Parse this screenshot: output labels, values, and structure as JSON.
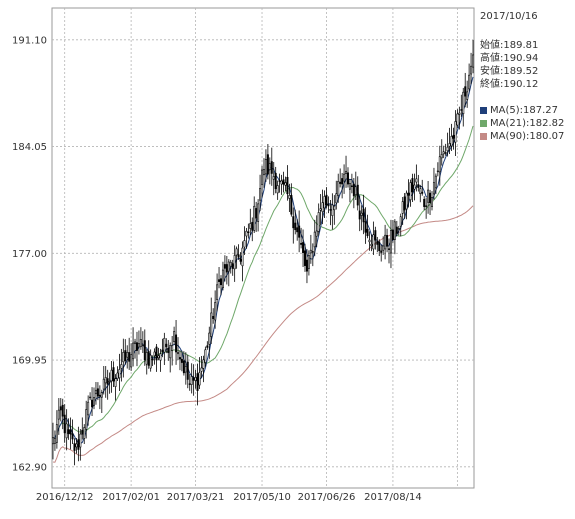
{
  "chart_data": {
    "type": "candlestick",
    "yticks": [
      "191.10",
      "184.05",
      "177.00",
      "169.95",
      "162.90"
    ],
    "ytick_values": [
      191.1,
      184.05,
      177.0,
      169.95,
      162.9
    ],
    "ylim": [
      161.5,
      193.2
    ],
    "xtick_labels": [
      "2016/12/12",
      "2017/02/01",
      "2017/03/21",
      "2017/05/10",
      "2017/06/26",
      "2017/08/14"
    ],
    "xtick_positions": [
      6,
      40,
      73,
      107,
      140,
      174
    ],
    "n_days": 216,
    "grid": true,
    "close_anchors": [
      [
        0,
        164.6
      ],
      [
        4,
        166.4
      ],
      [
        8,
        164.8
      ],
      [
        12,
        164.0
      ],
      [
        16,
        165.9
      ],
      [
        20,
        167.4
      ],
      [
        26,
        168.1
      ],
      [
        32,
        169.2
      ],
      [
        38,
        170.1
      ],
      [
        44,
        171.0
      ],
      [
        50,
        170.0
      ],
      [
        56,
        170.6
      ],
      [
        62,
        171.6
      ],
      [
        66,
        169.9
      ],
      [
        70,
        168.3
      ],
      [
        74,
        168.6
      ],
      [
        78,
        170.4
      ],
      [
        82,
        173.1
      ],
      [
        86,
        175.6
      ],
      [
        90,
        176.0
      ],
      [
        96,
        176.9
      ],
      [
        100,
        178.3
      ],
      [
        104,
        179.9
      ],
      [
        108,
        182.8
      ],
      [
        112,
        182.4
      ],
      [
        116,
        181.5
      ],
      [
        120,
        180.8
      ],
      [
        124,
        178.9
      ],
      [
        128,
        176.8
      ],
      [
        130,
        175.6
      ],
      [
        134,
        178.3
      ],
      [
        138,
        180.6
      ],
      [
        142,
        180.2
      ],
      [
        146,
        181.1
      ],
      [
        150,
        182.0
      ],
      [
        154,
        181.3
      ],
      [
        158,
        179.5
      ],
      [
        162,
        178.4
      ],
      [
        166,
        177.3
      ],
      [
        170,
        177.6
      ],
      [
        174,
        178.1
      ],
      [
        178,
        179.3
      ],
      [
        182,
        181.1
      ],
      [
        186,
        181.6
      ],
      [
        190,
        180.4
      ],
      [
        194,
        181.2
      ],
      [
        198,
        183.1
      ],
      [
        202,
        184.1
      ],
      [
        206,
        185.1
      ],
      [
        210,
        187.1
      ],
      [
        213,
        188.9
      ],
      [
        215,
        190.1
      ]
    ],
    "ma_lines": [
      {
        "name": "MA(5)",
        "period": 5,
        "color": "#1f3f7a"
      },
      {
        "name": "MA(21)",
        "period": 21,
        "color": "#6fa86a"
      },
      {
        "name": "MA(90)",
        "period": 90,
        "color": "#c48a86"
      }
    ]
  },
  "info": {
    "date": "2017/10/16",
    "ohlc": [
      {
        "label": "始値",
        "value": "189.81"
      },
      {
        "label": "高値",
        "value": "190.94"
      },
      {
        "label": "安値",
        "value": "189.52"
      },
      {
        "label": "終値",
        "value": "190.12"
      }
    ],
    "ma": [
      {
        "label": "MA(5)",
        "value": "187.27",
        "color": "#1f3f7a"
      },
      {
        "label": "MA(21)",
        "value": "182.82",
        "color": "#6fa86a"
      },
      {
        "label": "MA(90)",
        "value": "180.07",
        "color": "#c48a86"
      }
    ]
  }
}
